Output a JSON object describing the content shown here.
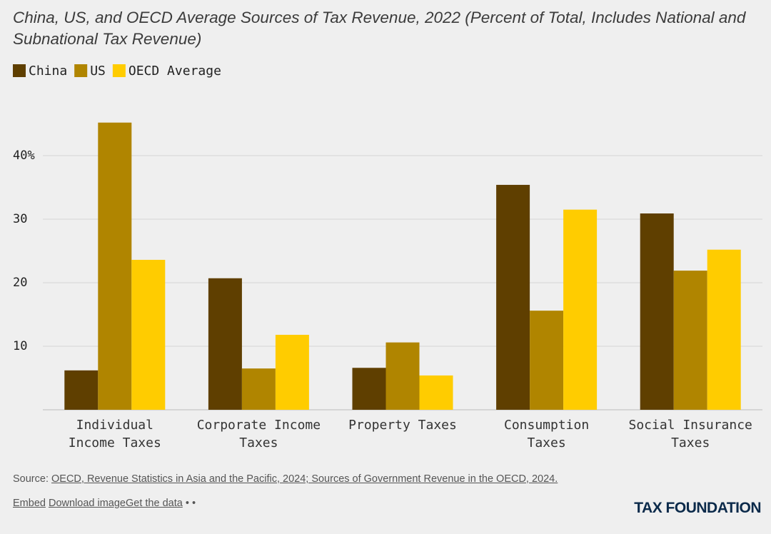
{
  "chart_data": {
    "type": "bar",
    "title": "China, US, and OECD Average Sources of Tax Revenue, 2022 (Percent of Total, Includes National and Subnational Tax Revenue)",
    "categories": [
      "Individual Income Taxes",
      "Corporate Income Taxes",
      "Property Taxes",
      "Consumption Taxes",
      "Social Insurance Taxes"
    ],
    "series": [
      {
        "name": "China",
        "color": "#5f3f00",
        "values": [
          6.2,
          20.7,
          6.6,
          35.4,
          30.9
        ]
      },
      {
        "name": "US",
        "color": "#b08500",
        "values": [
          45.2,
          6.5,
          10.6,
          15.6,
          21.9
        ]
      },
      {
        "name": "OECD Average",
        "color": "#ffcc00",
        "values": [
          23.6,
          11.8,
          5.4,
          31.5,
          25.2
        ]
      }
    ],
    "ylim": [
      0,
      50
    ],
    "yticks": [
      {
        "value": 40,
        "label": "40%"
      },
      30,
      20,
      10
    ],
    "grid": true
  },
  "footer": {
    "source_label": "Source:",
    "source_text": "OECD, Revenue Statistics in Asia and the Pacific, 2024; Sources of Government Revenue in the OECD, 2024.",
    "links": [
      "Embed",
      "Download image",
      "Get the data"
    ],
    "logo": "TAX FOUNDATION"
  }
}
